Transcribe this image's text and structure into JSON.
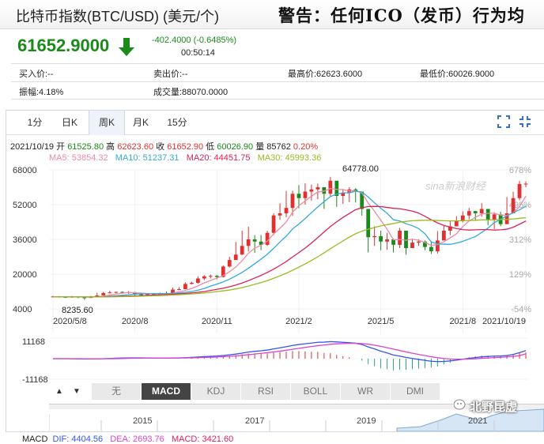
{
  "header": {
    "title": "比特币指数(BTC/USD) (美元/个)",
    "warning": "警告：任何ICO（发币）行为均"
  },
  "quote": {
    "price": "61652.9000",
    "change": "-402.4000 (-0.6485%)",
    "time": "00:50:14",
    "bid": "买入价:--",
    "ask": "卖出价:--",
    "high": "最高价:62623.6000",
    "low": "最低价:60026.9000",
    "amplitude": "振幅:4.18%",
    "volume": "成交量:88070.0000"
  },
  "colors": {
    "down": "#1a8a1a",
    "up": "#e03030",
    "ma5": "#f08aa6",
    "ma10": "#33aadd",
    "ma20": "#dd2255",
    "ma30": "#99bb22",
    "dif": "#3355ee",
    "dea": "#dd44cc"
  },
  "tabs": [
    "1分",
    "日K",
    "周K",
    "月K",
    "15分"
  ],
  "active_tab": "周K",
  "icons": [
    "fullscreen-icon",
    "close-fullscreen-icon"
  ],
  "ohlc": {
    "date": "2021/10/19",
    "open_label": "开",
    "open": "61525.80",
    "high_label": "高",
    "high": "62623.60",
    "close_label": "收",
    "close": "61652.90",
    "low_label": "低",
    "low": "60026.90",
    "vol_label": "量",
    "vol": "85762",
    "pct": "0.20%"
  },
  "ma": {
    "ma5": "MA5: 53854.32",
    "ma10": "MA10: 51237.31",
    "ma20": "MA20: 44451.75",
    "ma30": "MA30: 45993.36"
  },
  "chart_labels": {
    "y_ticks": [
      "68000",
      "52000",
      "36000",
      "20000",
      "4000"
    ],
    "right_ticks": [
      "678%",
      "495%",
      "312%",
      "129%",
      "-54%"
    ],
    "x_ticks": [
      "2020/5/8",
      "2020/8",
      "2020/11",
      "2021/2",
      "2021/5",
      "2021/8",
      "2021/10/19"
    ],
    "max_label": "64778.00",
    "min_label": "8235.60",
    "macd_ticks": [
      "11168",
      "-11168"
    ],
    "watermark": "sina新浪财经"
  },
  "macd": {
    "label": "MACD",
    "dif": "DIF: 4404.56",
    "dea": "DEA: 2693.76",
    "macd": "MACD: 3421.60"
  },
  "indicator_buttons": [
    "无",
    "MACD",
    "KDJ",
    "RSI",
    "BOLL",
    "WR",
    "DMI"
  ],
  "active_indicator": "MACD",
  "timeline_years": [
    "2015",
    "2017",
    "2019",
    "2021"
  ],
  "corner_watermark": "北野昆虚",
  "chart_data": {
    "type": "candlestick",
    "period": "weekly",
    "ylim": [
      4000,
      68000
    ],
    "series_close": [
      9700,
      9500,
      9400,
      9600,
      9300,
      9200,
      9400,
      10200,
      11300,
      11600,
      11800,
      11600,
      11700,
      10700,
      10400,
      10800,
      10600,
      10900,
      11300,
      12900,
      13100,
      15500,
      16000,
      18000,
      19000,
      19200,
      18700,
      23500,
      26500,
      29000,
      33000,
      36000,
      35000,
      33500,
      39000,
      47000,
      48000,
      50500,
      57000,
      55000,
      58000,
      59000,
      60000,
      57000,
      63000,
      56000,
      57500,
      59000,
      58000,
      50000,
      37000,
      37500,
      35000,
      36000,
      33500,
      40000,
      32000,
      34500,
      35000,
      32500,
      30500,
      35500,
      40000,
      42000,
      44500,
      47000,
      49000,
      48000,
      50000,
      45000,
      47500,
      43000,
      48000,
      55000,
      61500,
      61653
    ],
    "series_high": [
      10000,
      9900,
      9800,
      10000,
      9700,
      9600,
      10000,
      11400,
      11800,
      12400,
      12000,
      12100,
      12200,
      11700,
      11000,
      11200,
      11100,
      11500,
      12000,
      13800,
      14000,
      16200,
      16500,
      19000,
      19500,
      19800,
      19600,
      24000,
      28000,
      34800,
      40000,
      41900,
      38000,
      38000,
      40000,
      48000,
      52600,
      58300,
      58400,
      61000,
      61800,
      61200,
      61700,
      59800,
      64778,
      58000,
      59200,
      60000,
      59600,
      55000,
      43900,
      42000,
      40000,
      39000,
      36400,
      41300,
      36400,
      36300,
      36000,
      35500,
      34800,
      39800,
      42300,
      44700,
      46600,
      48900,
      50500,
      49000,
      52700,
      49700,
      48500,
      48700,
      55500,
      57900,
      62900,
      62624
    ],
    "series_low": [
      9300,
      9200,
      9000,
      9100,
      8900,
      8235.6,
      9100,
      9600,
      10900,
      11100,
      11200,
      11100,
      10900,
      10200,
      9900,
      10300,
      10300,
      10600,
      10900,
      11800,
      12900,
      13200,
      15300,
      15600,
      17200,
      18000,
      17600,
      18500,
      23100,
      27300,
      28800,
      30400,
      29800,
      31000,
      33000,
      38000,
      45000,
      46200,
      46800,
      50300,
      52000,
      53800,
      54500,
      50000,
      56000,
      51000,
      52300,
      53200,
      53000,
      46900,
      30000,
      33000,
      31000,
      31200,
      30000,
      32000,
      29000,
      32200,
      33000,
      31000,
      29300,
      29500,
      37500,
      38000,
      42000,
      43800,
      45200,
      44500,
      46500,
      42500,
      40800,
      42100,
      47000,
      53600,
      54000,
      60027
    ],
    "ma5": [
      9500,
      9550,
      9500,
      9500,
      9500,
      9450,
      9400,
      9550,
      9850,
      10300,
      10800,
      11250,
      11550,
      11450,
      11250,
      11100,
      10950,
      10900,
      10850,
      11250,
      11800,
      12500,
      13400,
      14600,
      16000,
      17100,
      18200,
      19300,
      21100,
      23300,
      26200,
      29600,
      32000,
      33300,
      35200,
      38500,
      41100,
      44000,
      48500,
      51500,
      53700,
      55900,
      57800,
      58200,
      59400,
      59000,
      58900,
      58300,
      58400,
      57300,
      52700,
      49000,
      44800,
      40700,
      35800,
      35900,
      35600,
      36100,
      35600,
      34600,
      33200,
      33600,
      34900,
      36700,
      38600,
      41900,
      44500,
      46100,
      47700,
      48000,
      48000,
      47200,
      47000,
      48200,
      51100,
      55900
    ],
    "ma10": [
      9500,
      9500,
      9500,
      9500,
      9500,
      9500,
      9500,
      9550,
      9650,
      9800,
      10000,
      10250,
      10550,
      10800,
      10950,
      11000,
      11050,
      11050,
      11050,
      11150,
      11300,
      11650,
      12050,
      12600,
      13400,
      14500,
      15400,
      16400,
      17700,
      19200,
      20800,
      22700,
      24800,
      26900,
      29200,
      31900,
      34800,
      37500,
      40800,
      43100,
      45600,
      48300,
      50900,
      53400,
      55700,
      56800,
      57400,
      57400,
      58200,
      57800,
      55500,
      52800,
      50300,
      48000,
      45000,
      44500,
      43200,
      42300,
      41000,
      38600,
      34800,
      33900,
      33800,
      33700,
      34300,
      35100,
      36200,
      37300,
      39200,
      41200,
      43700,
      45200,
      46800,
      48300,
      49600,
      51237
    ],
    "ma20": [
      9500,
      9500,
      9500,
      9500,
      9500,
      9500,
      9500,
      9500,
      9550,
      9650,
      9700,
      9800,
      9900,
      10000,
      10100,
      10200,
      10350,
      10450,
      10550,
      10700,
      10900,
      11100,
      11350,
      11650,
      12000,
      12500,
      13000,
      13550,
      14200,
      15000,
      15900,
      17000,
      18200,
      19400,
      20800,
      22300,
      24000,
      25800,
      27900,
      29900,
      32000,
      34300,
      36800,
      39400,
      41900,
      44100,
      46100,
      47900,
      49700,
      50600,
      51100,
      51200,
      51100,
      50700,
      50300,
      50100,
      49600,
      49000,
      48100,
      46600,
      45000,
      43600,
      42400,
      41700,
      41000,
      40500,
      40300,
      40400,
      40500,
      40500,
      40300,
      40400,
      40700,
      41600,
      43000,
      44452
    ],
    "ma30": [
      9500,
      9500,
      9500,
      9500,
      9500,
      9500,
      9500,
      9500,
      9500,
      9550,
      9600,
      9650,
      9700,
      9800,
      9850,
      9950,
      10050,
      10150,
      10250,
      10400,
      10550,
      10700,
      10900,
      11100,
      11350,
      11650,
      11950,
      12300,
      12700,
      13200,
      13800,
      14500,
      15300,
      16100,
      17000,
      18100,
      19200,
      20400,
      21800,
      23200,
      24700,
      26300,
      28000,
      29800,
      31700,
      33500,
      35300,
      37000,
      38600,
      39800,
      40700,
      41500,
      42200,
      42800,
      43300,
      43900,
      44300,
      44600,
      44700,
      44800,
      44800,
      44700,
      44600,
      44500,
      44500,
      44600,
      44700,
      44800,
      45000,
      45000,
      45000,
      45100,
      45200,
      45400,
      45700,
      45993
    ],
    "dif": [
      0,
      0,
      0,
      -50,
      -100,
      -150,
      -150,
      -100,
      0,
      100,
      250,
      350,
      400,
      420,
      400,
      380,
      350,
      330,
      320,
      350,
      420,
      550,
      700,
      900,
      1100,
      1300,
      1450,
      1700,
      2100,
      2500,
      3000,
      3600,
      4000,
      4300,
      4700,
      5300,
      5900,
      6500,
      7200,
      7700,
      8100,
      8500,
      8900,
      9000,
      9300,
      9100,
      8900,
      8700,
      8400,
      7700,
      6400,
      5300,
      4100,
      3100,
      2000,
      1400,
      700,
      100,
      -400,
      -900,
      -1400,
      -1600,
      -1500,
      -1200,
      -800,
      -300,
      200,
      600,
      1000,
      1200,
      1400,
      1500,
      1700,
      2300,
      3300,
      4405
    ],
    "dea": [
      0,
      0,
      0,
      -10,
      -30,
      -55,
      -75,
      -80,
      -65,
      -30,
      25,
      90,
      150,
      205,
      245,
      270,
      285,
      295,
      300,
      310,
      330,
      370,
      435,
      530,
      645,
      780,
      915,
      1070,
      1275,
      1520,
      1815,
      2175,
      2540,
      2890,
      3250,
      3660,
      4110,
      4590,
      5110,
      5630,
      6120,
      6600,
      7060,
      7450,
      7820,
      8080,
      8240,
      8330,
      8350,
      8220,
      7860,
      7350,
      6700,
      5980,
      5190,
      4430,
      3680,
      2960,
      2290,
      1650,
      1040,
      510,
      110,
      -150,
      -280,
      -280,
      -180,
      -20,
      180,
      380,
      580,
      760,
      950,
      1220,
      1640,
      2694
    ]
  }
}
